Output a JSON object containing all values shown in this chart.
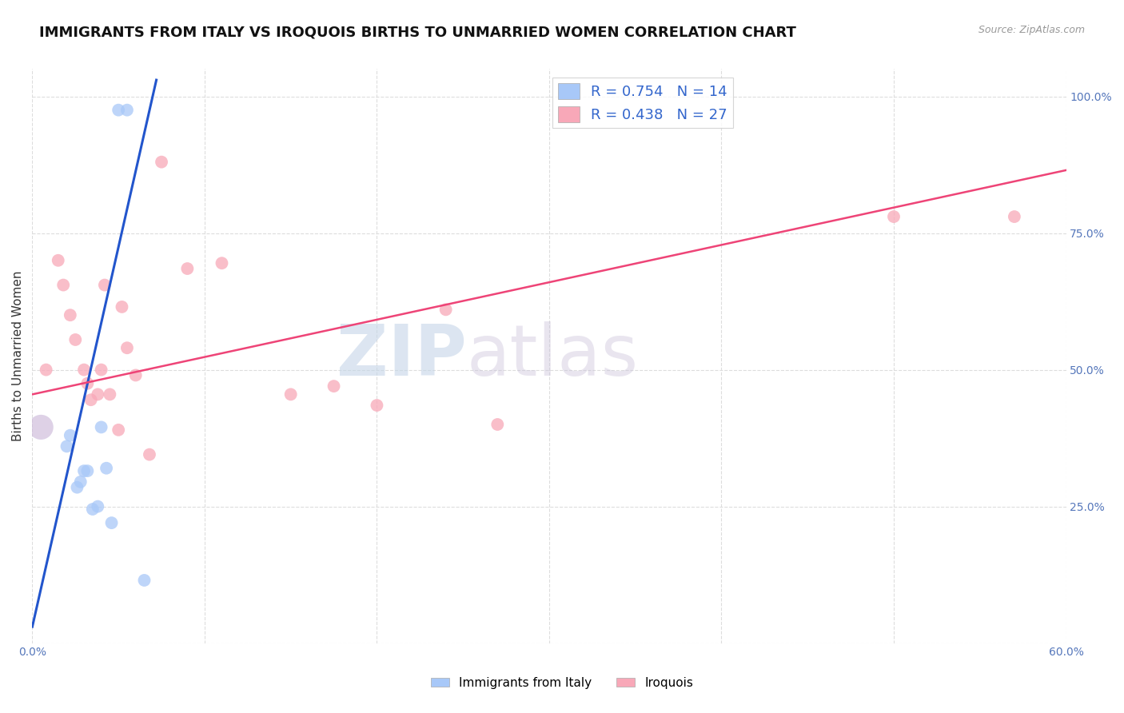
{
  "title": "IMMIGRANTS FROM ITALY VS IROQUOIS BIRTHS TO UNMARRIED WOMEN CORRELATION CHART",
  "source": "Source: ZipAtlas.com",
  "ylabel": "Births to Unmarried Women",
  "xlim": [
    0.0,
    0.6
  ],
  "ylim": [
    0.0,
    1.05
  ],
  "xticks": [
    0.0,
    0.1,
    0.2,
    0.3,
    0.4,
    0.5,
    0.6
  ],
  "xticklabels": [
    "0.0%",
    "",
    "",
    "",
    "",
    "",
    "60.0%"
  ],
  "ytick_positions": [
    0.0,
    0.25,
    0.5,
    0.75,
    1.0
  ],
  "yticklabels": [
    "",
    "25.0%",
    "50.0%",
    "75.0%",
    "100.0%"
  ],
  "blue_label": "Immigrants from Italy",
  "pink_label": "Iroquois",
  "blue_R": "R = 0.754",
  "blue_N": "N = 14",
  "pink_R": "R = 0.438",
  "pink_N": "N = 27",
  "blue_color": "#a8c8f8",
  "pink_color": "#f8a8b8",
  "blue_line_color": "#2255cc",
  "pink_line_color": "#ee4477",
  "watermark_zip": "ZIP",
  "watermark_atlas": "atlas",
  "blue_points_x": [
    0.02,
    0.022,
    0.026,
    0.028,
    0.03,
    0.032,
    0.035,
    0.038,
    0.04,
    0.043,
    0.046,
    0.05,
    0.055,
    0.065
  ],
  "blue_points_y": [
    0.36,
    0.38,
    0.285,
    0.295,
    0.315,
    0.315,
    0.245,
    0.25,
    0.395,
    0.32,
    0.22,
    0.975,
    0.975,
    0.115
  ],
  "pink_points_x": [
    0.008,
    0.015,
    0.018,
    0.022,
    0.025,
    0.03,
    0.032,
    0.034,
    0.038,
    0.04,
    0.042,
    0.045,
    0.05,
    0.052,
    0.055,
    0.06,
    0.068,
    0.075,
    0.09,
    0.11,
    0.15,
    0.175,
    0.2,
    0.24,
    0.27,
    0.5,
    0.57
  ],
  "pink_points_y": [
    0.5,
    0.7,
    0.655,
    0.6,
    0.555,
    0.5,
    0.475,
    0.445,
    0.455,
    0.5,
    0.655,
    0.455,
    0.39,
    0.615,
    0.54,
    0.49,
    0.345,
    0.88,
    0.685,
    0.695,
    0.455,
    0.47,
    0.435,
    0.61,
    0.4,
    0.78,
    0.78
  ],
  "blue_line_x": [
    0.0,
    0.072
  ],
  "blue_line_y": [
    0.03,
    1.03
  ],
  "pink_line_x": [
    0.0,
    0.6
  ],
  "pink_line_y": [
    0.455,
    0.865
  ],
  "grid_color": "#dddddd",
  "title_fontsize": 13,
  "axis_label_fontsize": 11,
  "tick_fontsize": 10,
  "legend_fontsize": 13,
  "marker_size": 130
}
